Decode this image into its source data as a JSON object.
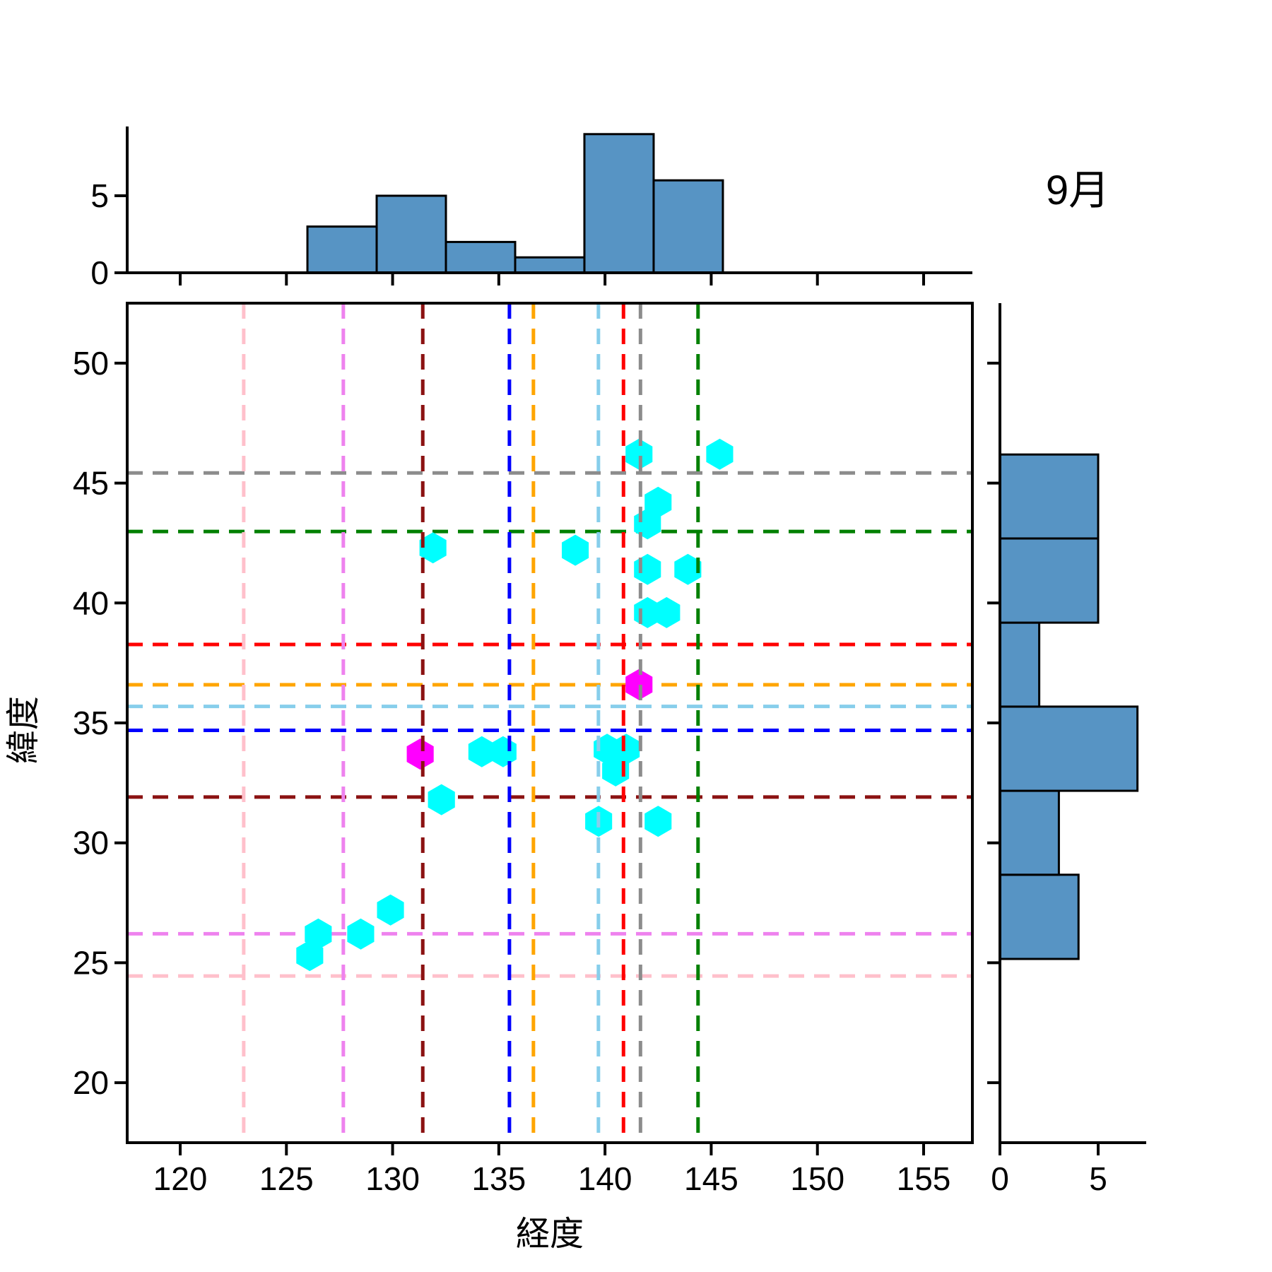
{
  "chart_data": {
    "type": "scatter",
    "title": "9月",
    "xlabel": "経度",
    "ylabel": "緯度",
    "xlim": [
      117.5,
      157.3
    ],
    "ylim": [
      17.5,
      52.5
    ],
    "xticks": [
      120,
      125,
      130,
      135,
      140,
      145,
      150,
      155
    ],
    "yticks": [
      20,
      25,
      30,
      35,
      40,
      45,
      50
    ],
    "marginal_ticks": [
      0,
      5
    ],
    "grid": false,
    "legend_position": "none",
    "colors": {
      "hist_fill": "#5794c4",
      "hist_edge": "#000000",
      "scatter": "#00ffff",
      "scatter_highlight": "#ff00ff",
      "axis": "#000000"
    },
    "points_cyan": [
      [
        141.6,
        46.2
      ],
      [
        145.4,
        46.2
      ],
      [
        142.5,
        44.2
      ],
      [
        142.0,
        43.3
      ],
      [
        131.9,
        42.3
      ],
      [
        138.6,
        42.2
      ],
      [
        142.0,
        41.4
      ],
      [
        143.9,
        41.4
      ],
      [
        142.0,
        39.6
      ],
      [
        142.9,
        39.6
      ],
      [
        134.2,
        33.8
      ],
      [
        135.2,
        33.8
      ],
      [
        140.1,
        33.9
      ],
      [
        141.0,
        33.9
      ],
      [
        140.5,
        33.0
      ],
      [
        132.3,
        31.8
      ],
      [
        139.7,
        30.9
      ],
      [
        142.5,
        30.9
      ],
      [
        129.9,
        27.2
      ],
      [
        128.5,
        26.2
      ],
      [
        126.5,
        26.2
      ],
      [
        126.1,
        25.3
      ]
    ],
    "points_magenta": [
      [
        141.6,
        36.6
      ],
      [
        131.3,
        33.7
      ]
    ],
    "crosshairs": [
      {
        "color": "pink",
        "hex": "#FFC0CB",
        "lon": 122.99,
        "lat": 24.45
      },
      {
        "color": "violet",
        "hex": "#EE82EE",
        "lon": 127.68,
        "lat": 26.21
      },
      {
        "color": "darkred",
        "hex": "#8B1212",
        "lon": 131.42,
        "lat": 31.91
      },
      {
        "color": "blue",
        "hex": "#0000FF",
        "lon": 135.5,
        "lat": 34.69
      },
      {
        "color": "orange",
        "hex": "#FFA500",
        "lon": 136.63,
        "lat": 36.59
      },
      {
        "color": "skyblue",
        "hex": "#87CEEB",
        "lon": 139.69,
        "lat": 35.69
      },
      {
        "color": "red",
        "hex": "#FF0000",
        "lon": 140.87,
        "lat": 38.27
      },
      {
        "color": "gray",
        "hex": "#8C8C8C",
        "lon": 141.67,
        "lat": 45.42
      },
      {
        "color": "green",
        "hex": "#008000",
        "lon": 144.38,
        "lat": 42.98
      }
    ],
    "top_hist": {
      "bin_edges": [
        125.99,
        129.25,
        132.51,
        135.77,
        139.03,
        142.29,
        145.55
      ],
      "counts": [
        3,
        5,
        2,
        1,
        9,
        6
      ]
    },
    "right_hist": {
      "bin_edges": [
        25.16,
        28.67,
        32.17,
        35.68,
        39.18,
        42.69,
        46.19
      ],
      "counts": [
        4,
        3,
        7,
        2,
        5,
        5
      ]
    }
  }
}
